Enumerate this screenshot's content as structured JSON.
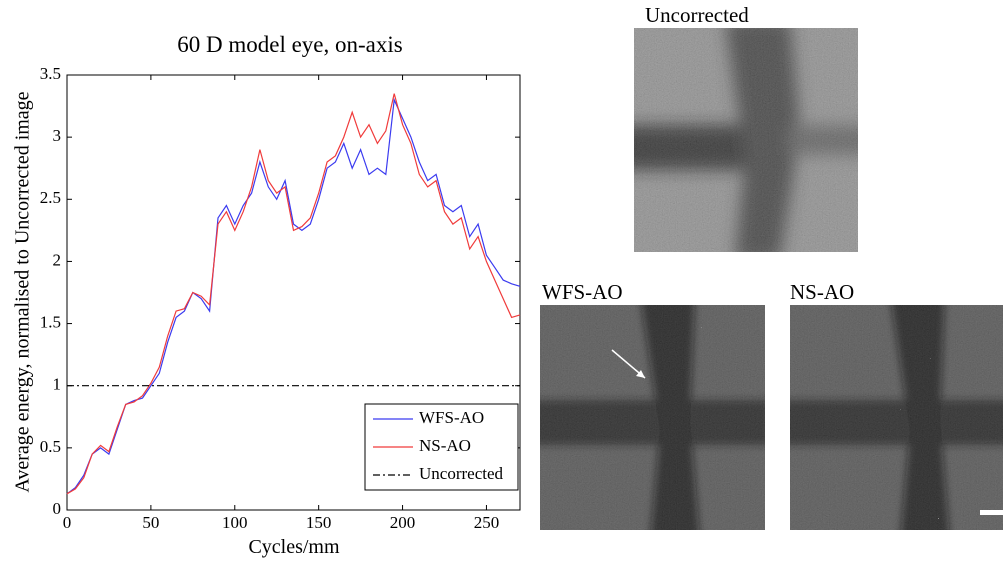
{
  "chart_data": {
    "type": "line",
    "title": "60 D model eye, on-axis",
    "x_label": "Cycles/mm",
    "y_label": "Average energy, normalised to Uncorrected image",
    "x": [
      0,
      5,
      10,
      15,
      20,
      25,
      30,
      35,
      40,
      45,
      50,
      55,
      60,
      65,
      70,
      75,
      80,
      85,
      90,
      95,
      100,
      105,
      110,
      115,
      120,
      125,
      130,
      135,
      140,
      145,
      150,
      155,
      160,
      165,
      170,
      175,
      180,
      185,
      190,
      195,
      200,
      205,
      210,
      215,
      220,
      225,
      230,
      235,
      240,
      245,
      250,
      255,
      260,
      265,
      270
    ],
    "series": [
      {
        "name": "WFS-AO",
        "color": "#3b3bf0",
        "dash": "none",
        "values": [
          0.13,
          0.18,
          0.28,
          0.45,
          0.5,
          0.45,
          0.65,
          0.85,
          0.88,
          0.9,
          1.0,
          1.1,
          1.35,
          1.55,
          1.6,
          1.75,
          1.7,
          1.6,
          2.35,
          2.45,
          2.3,
          2.45,
          2.55,
          2.8,
          2.6,
          2.5,
          2.65,
          2.3,
          2.25,
          2.3,
          2.5,
          2.75,
          2.8,
          2.95,
          2.75,
          2.9,
          2.7,
          2.75,
          2.7,
          3.3,
          3.15,
          3.0,
          2.8,
          2.65,
          2.7,
          2.45,
          2.4,
          2.45,
          2.2,
          2.3,
          2.05,
          1.95,
          1.85,
          1.82,
          1.8
        ]
      },
      {
        "name": "NS-AO",
        "color": "#f03b3b",
        "dash": "none",
        "values": [
          0.13,
          0.17,
          0.26,
          0.45,
          0.52,
          0.47,
          0.67,
          0.85,
          0.87,
          0.92,
          1.02,
          1.15,
          1.4,
          1.6,
          1.62,
          1.75,
          1.72,
          1.65,
          2.3,
          2.4,
          2.25,
          2.4,
          2.6,
          2.9,
          2.65,
          2.55,
          2.6,
          2.25,
          2.28,
          2.35,
          2.55,
          2.8,
          2.85,
          3.0,
          3.2,
          3.0,
          3.1,
          2.95,
          3.05,
          3.35,
          3.1,
          2.95,
          2.7,
          2.6,
          2.65,
          2.4,
          2.3,
          2.35,
          2.1,
          2.2,
          2.0,
          1.85,
          1.7,
          1.55,
          1.57
        ]
      },
      {
        "name": "Uncorrected",
        "color": "#000000",
        "dash": "7,3,2,3",
        "values": [
          1,
          1,
          1,
          1,
          1,
          1,
          1,
          1,
          1,
          1,
          1,
          1,
          1,
          1,
          1,
          1,
          1,
          1,
          1,
          1,
          1,
          1,
          1,
          1,
          1,
          1,
          1,
          1,
          1,
          1,
          1,
          1,
          1,
          1,
          1,
          1,
          1,
          1,
          1,
          1,
          1,
          1,
          1,
          1,
          1,
          1,
          1,
          1,
          1,
          1,
          1,
          1,
          1,
          1,
          1
        ]
      }
    ],
    "xlim": [
      0,
      270
    ],
    "xticks": [
      0,
      50,
      100,
      150,
      200,
      250
    ],
    "ylim": [
      0,
      3.5
    ],
    "yticks": [
      0,
      0.5,
      1,
      1.5,
      2,
      2.5,
      3,
      3.5
    ],
    "legend": "lower right",
    "grid": false
  },
  "images": [
    {
      "label": "Uncorrected"
    },
    {
      "label": "WFS-AO"
    },
    {
      "label": "NS-AO"
    }
  ]
}
